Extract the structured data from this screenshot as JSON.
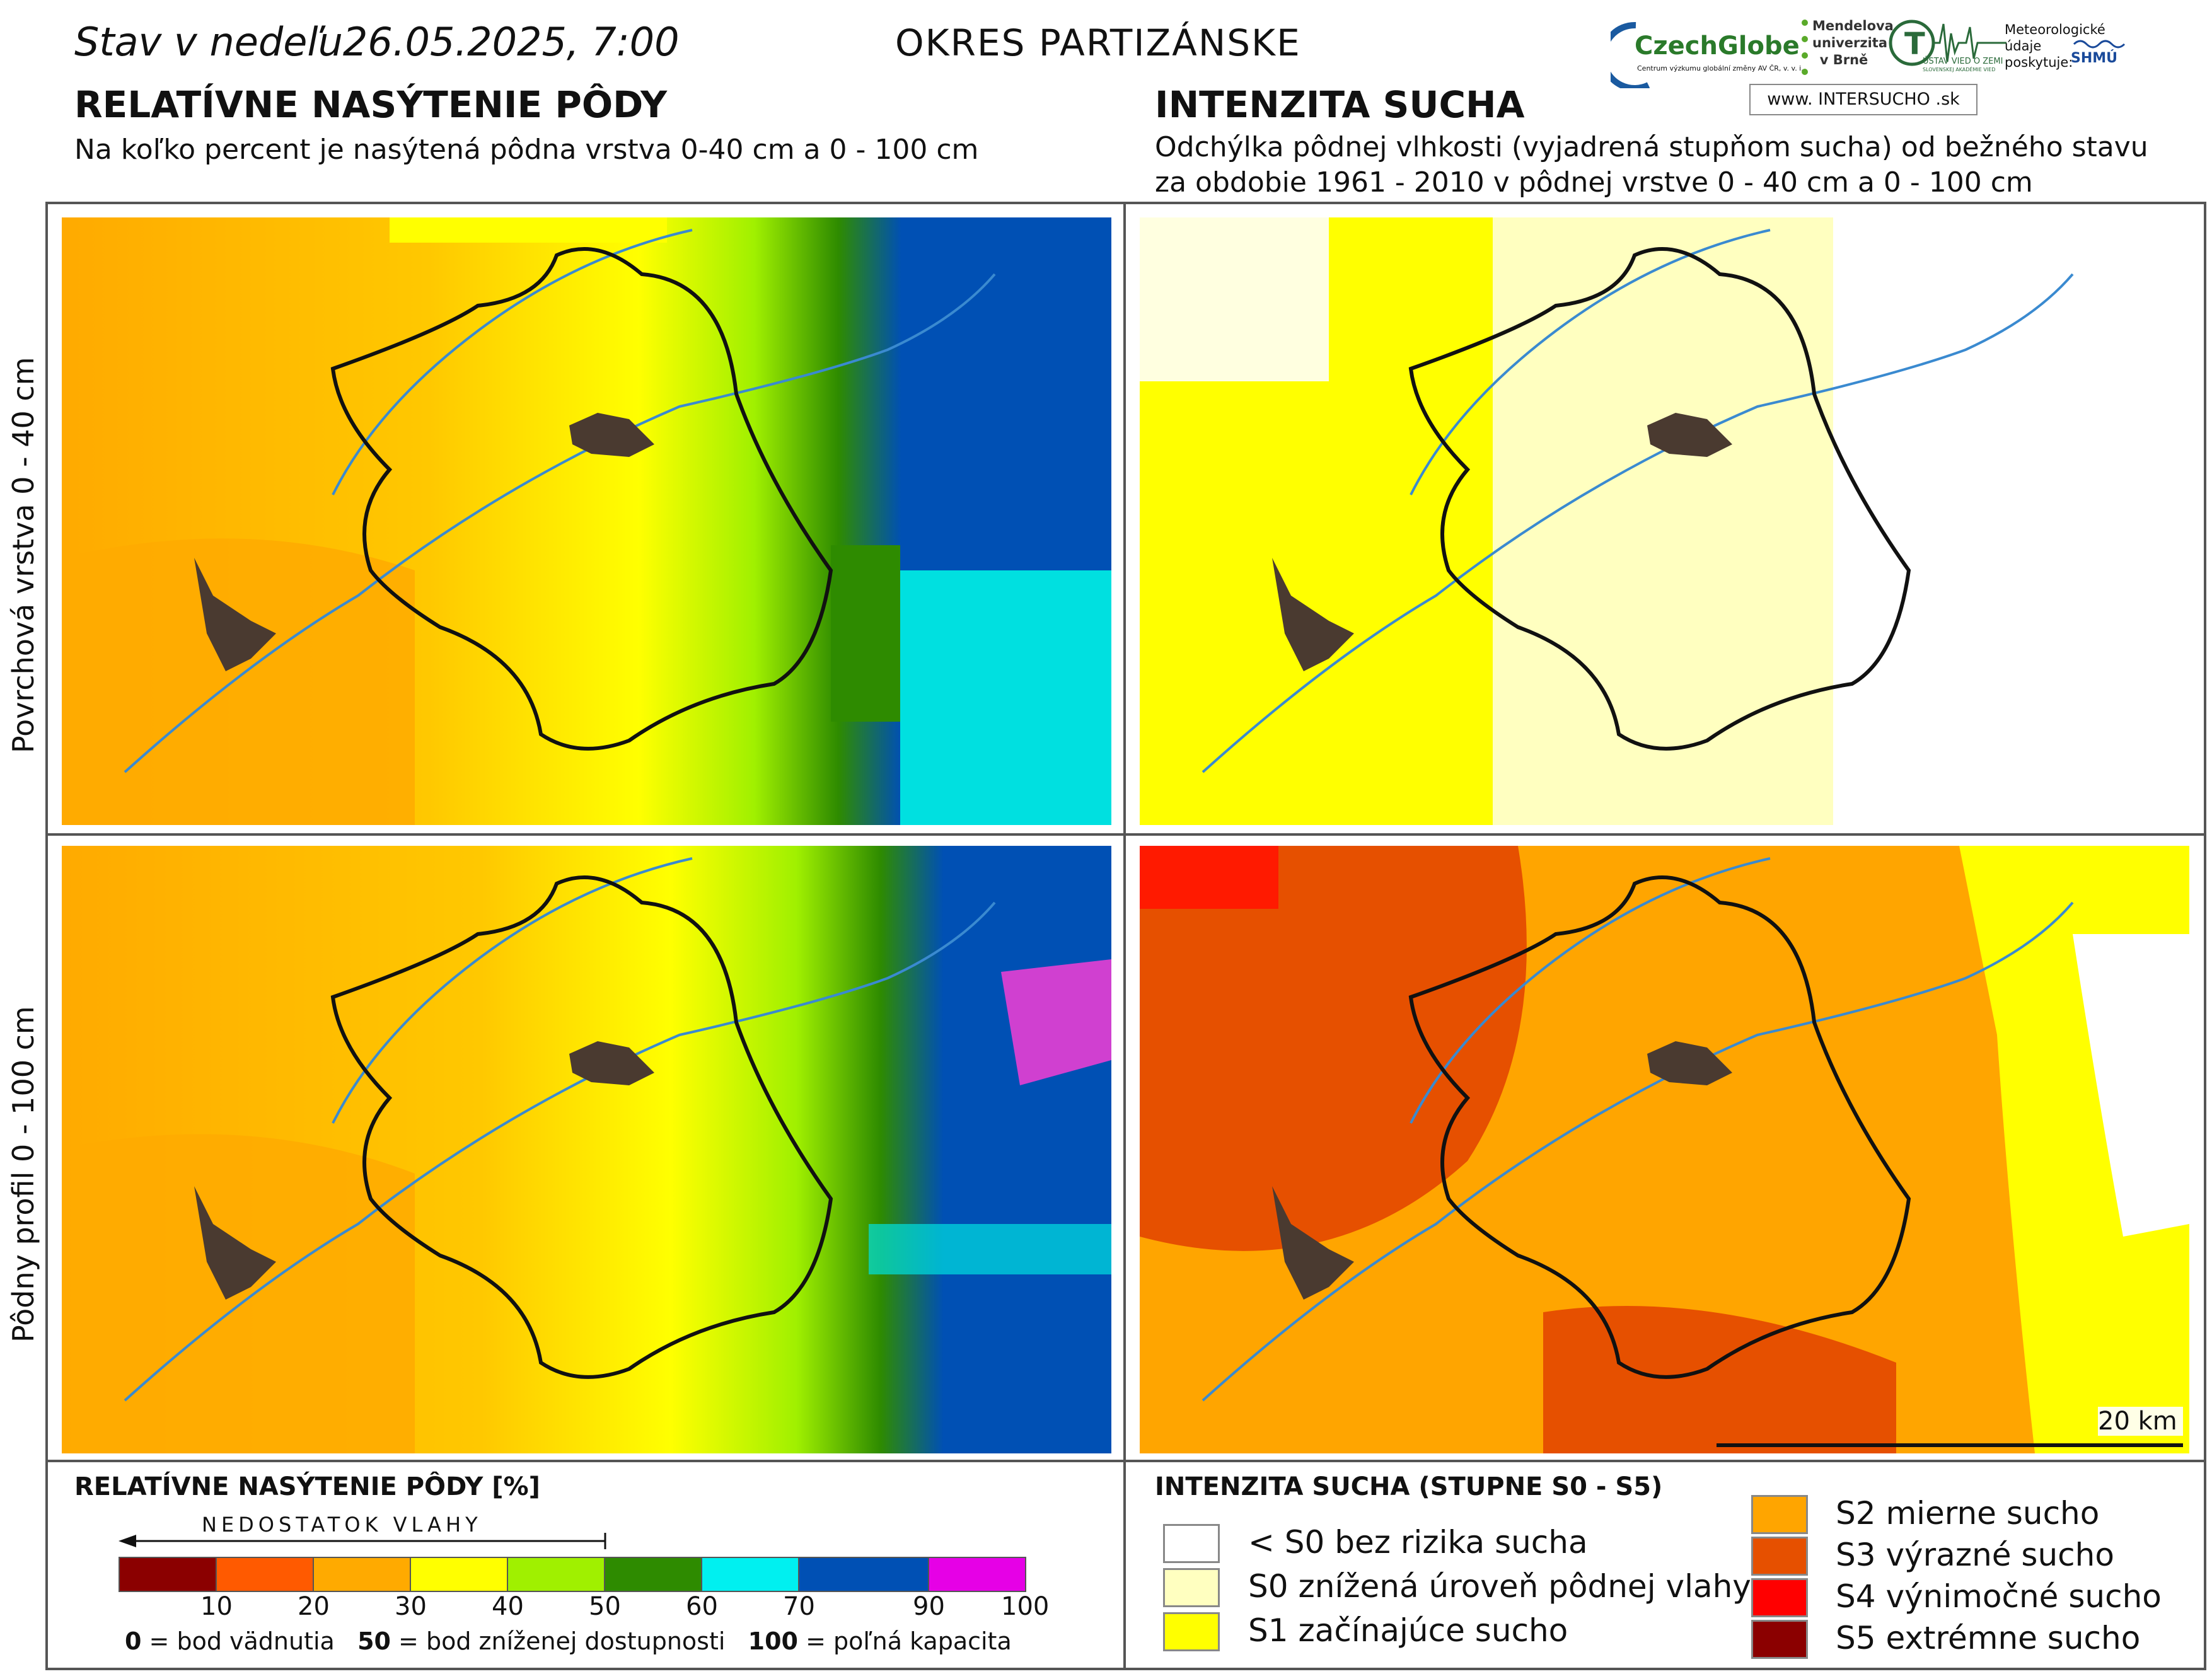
{
  "header": {
    "date_line": "Stav v nedeľu26.05.2025, 7:00",
    "district": "OKRES  PARTIZÁNSKE",
    "logos": {
      "czechglobe": "CzechGlobe",
      "czechglobe_sub": "Centrum výzkumu globální změny AV ČR, v. v. i.",
      "mendel": "Mendelova univerzita v Brně",
      "ustav": "ÚSTAV VIED O ZEMI",
      "ustav_sub": "SLOVENSKEJ AKADÉMIE VIED",
      "meteo": "Meteorologické údaje poskytuje:",
      "shmu": "SHMÚ",
      "intersucho": "www. INTERSUCHO .sk"
    }
  },
  "left_section": {
    "title": "RELATÍVNE NASÝTENIE PÔDY",
    "subtitle": "Na koľko percent je nasýtená pôdna vrstva 0-40 cm a 0 - 100 cm"
  },
  "right_section": {
    "title": "INTENZITA SUCHA",
    "subtitle_1": "Odchýlka pôdnej vlhkosti (vyjadrená stupňom sucha) od bežného stavu",
    "subtitle_2": "za obdobie 1961 - 2010 v pôdnej vrstve 0 - 40 cm a 0 - 100 cm"
  },
  "rows": {
    "top": "Povrchová vrstva 0 - 40 cm",
    "bottom": "Pôdny profil 0 - 100 cm"
  },
  "scalebar": "20 km",
  "saturation_legend": {
    "title": "RELATÍVNE NASÝTENIE PÔDY [%]",
    "arrow_label": "NEDOSTATOK VLAHY",
    "colors": [
      "#8b0000",
      "#ff5a00",
      "#ffaa00",
      "#ffff00",
      "#a0f000",
      "#2e8b00",
      "#00f0f0",
      "#0050b4",
      "#e600e6"
    ],
    "ticks": [
      "10",
      "20",
      "30",
      "40",
      "50",
      "60",
      "70",
      "90",
      "100"
    ],
    "note_0_key": "0",
    "note_0": " = bod vädnutia",
    "note_50_key": "50",
    "note_50": " = bod zníženej dostupnosti",
    "note_100_key": "100",
    "note_100": " = poľná kapacita"
  },
  "drought_legend": {
    "title": "INTENZITA SUCHA (STUPNE S0 - S5)",
    "items": [
      {
        "label": "< S0 bez rizika sucha",
        "color": "#ffffff"
      },
      {
        "label": "S0 znížená úroveň pôdnej vlahy",
        "color": "#ffffc0"
      },
      {
        "label": "S1 začínajúce sucho",
        "color": "#ffff00"
      },
      {
        "label": "S2 mierne sucho",
        "color": "#ffa500"
      },
      {
        "label": "S3 výrazné sucho",
        "color": "#e65000"
      },
      {
        "label": "S4 výnimočné sucho",
        "color": "#ff0000"
      },
      {
        "label": "S5 extrémne sucho",
        "color": "#8b0000"
      }
    ]
  }
}
